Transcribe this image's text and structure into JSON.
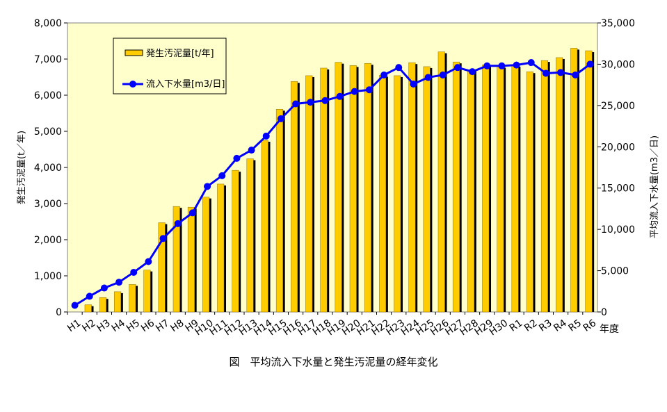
{
  "caption": "図　平均流入下水量と発生汚泥量の経年変化",
  "chart_data": {
    "type": "bar+line",
    "title": "図　平均流入下水量と発生汚泥量の経年変化",
    "xlabel": "年度",
    "ylabel_left": "発生汚泥量(t／年)",
    "ylabel_right": "平均流入下水量(m3／日)",
    "ylim_left": [
      0,
      8000
    ],
    "ylim_right": [
      0,
      35000
    ],
    "yticks_left": [
      "0",
      "1,000",
      "2,000",
      "3,000",
      "4,000",
      "5,000",
      "6,000",
      "7,000",
      "8,000"
    ],
    "yticks_right": [
      "0",
      "5,000",
      "10,000",
      "15,000",
      "20,000",
      "25,000",
      "30,000",
      "35,000"
    ],
    "categories": [
      "H1",
      "H2",
      "H3",
      "H4",
      "H5",
      "H6",
      "H7",
      "H8",
      "H9",
      "H10",
      "H11",
      "H12",
      "H13",
      "H14",
      "H15",
      "H16",
      "H17",
      "H18",
      "H19",
      "H20",
      "H21",
      "H22",
      "H23",
      "H24",
      "H25",
      "H26",
      "H27",
      "H28",
      "H29",
      "H30",
      "R1",
      "R2",
      "R3",
      "R4",
      "R5",
      "R6"
    ],
    "series": [
      {
        "name": "発生汚泥量[t/年]",
        "type": "bar",
        "axis": "left",
        "color": "#FFCC00",
        "values": [
          0,
          200,
          400,
          560,
          760,
          1160,
          2470,
          2920,
          2900,
          3180,
          3540,
          3920,
          4240,
          4750,
          5610,
          6380,
          6540,
          6750,
          6910,
          6820,
          6880,
          6550,
          6540,
          6900,
          6790,
          7200,
          6920,
          6700,
          6840,
          6800,
          6830,
          6650,
          6960,
          7040,
          7300,
          7230
        ]
      },
      {
        "name": "流入下水量[m3/日]",
        "type": "line",
        "axis": "right",
        "color": "#0000FF",
        "values": [
          800,
          1900,
          2900,
          3600,
          4800,
          6100,
          8900,
          10700,
          12000,
          15200,
          16500,
          18600,
          19600,
          21300,
          23400,
          25200,
          25400,
          25600,
          26100,
          26700,
          26900,
          28700,
          29600,
          27600,
          28400,
          28700,
          29600,
          29100,
          29800,
          29800,
          29900,
          30200,
          28900,
          29000,
          28700,
          30000
        ]
      }
    ],
    "legend": "top-left inside plot",
    "grid": false,
    "plot_background": "#FFFFCC"
  }
}
